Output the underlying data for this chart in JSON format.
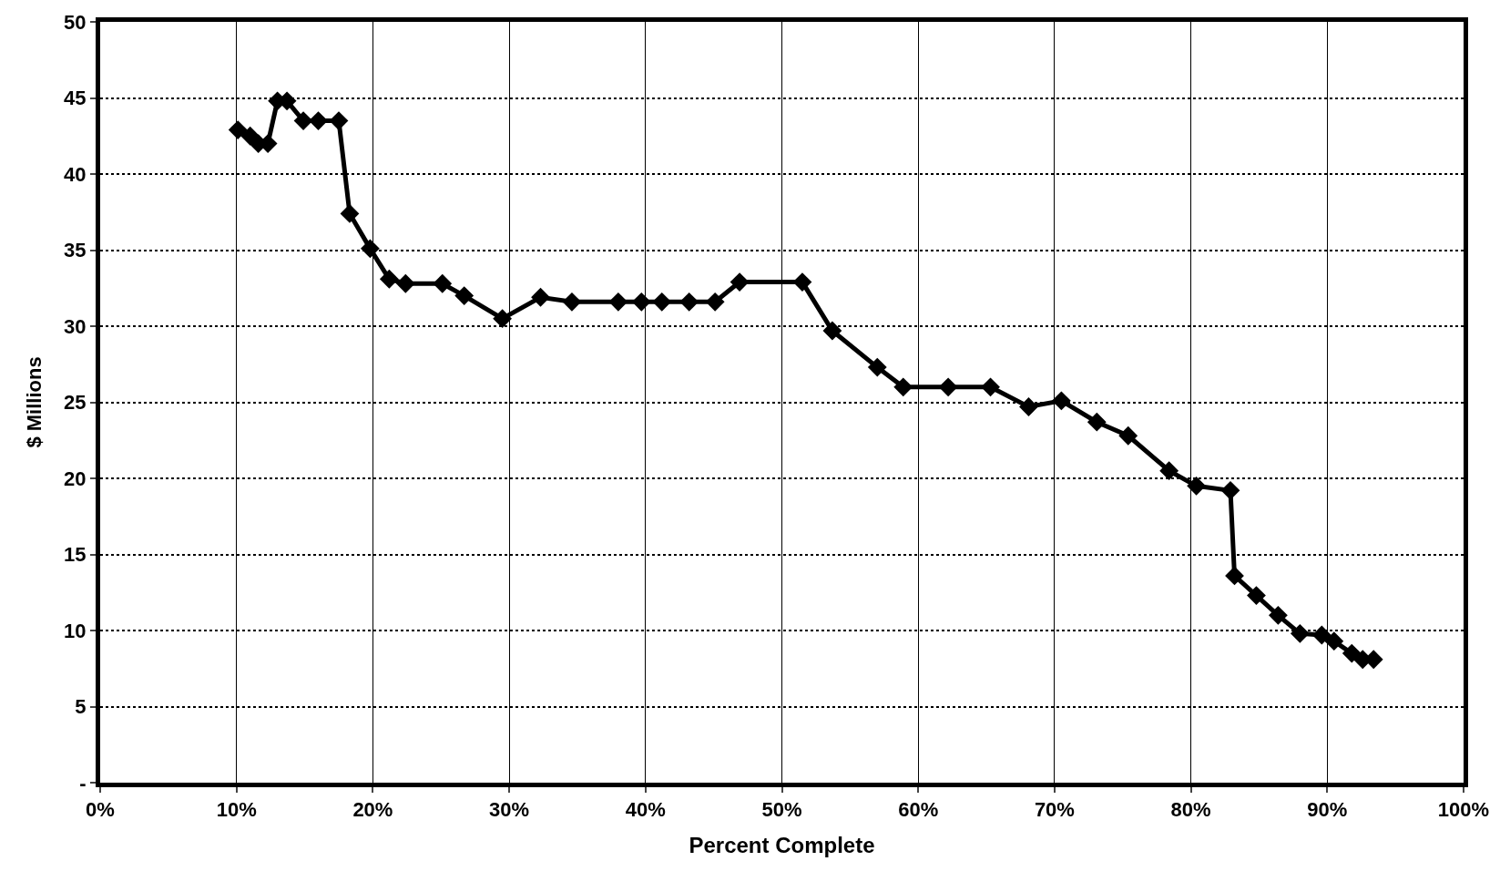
{
  "chart_data": {
    "type": "line",
    "xlabel": "Percent Complete",
    "ylabel": "$ Millions",
    "marker": "diamond",
    "line_style": "solid",
    "grid": true,
    "xlim": [
      0,
      100
    ],
    "xticks": [
      {
        "value": 0,
        "label": "0%"
      },
      {
        "value": 10,
        "label": "10%"
      },
      {
        "value": 20,
        "label": "20%"
      },
      {
        "value": 30,
        "label": "30%"
      },
      {
        "value": 40,
        "label": "40%"
      },
      {
        "value": 50,
        "label": "50%"
      },
      {
        "value": 60,
        "label": "60%"
      },
      {
        "value": 70,
        "label": "70%"
      },
      {
        "value": 80,
        "label": "80%"
      },
      {
        "value": 90,
        "label": "90%"
      },
      {
        "value": 100,
        "label": "100%"
      }
    ],
    "ylim": [
      0,
      50
    ],
    "yticks": [
      {
        "value": 0,
        "label": "-"
      },
      5,
      10,
      15,
      20,
      25,
      30,
      35,
      40,
      45,
      50
    ],
    "x": [
      10.1,
      11.0,
      11.6,
      12.3,
      13.0,
      13.7,
      14.9,
      16.0,
      17.5,
      18.3,
      19.8,
      21.2,
      22.4,
      25.1,
      26.7,
      29.5,
      32.3,
      34.6,
      38.0,
      39.7,
      41.2,
      43.2,
      45.1,
      46.9,
      51.5,
      53.7,
      57.0,
      58.9,
      62.2,
      65.3,
      68.1,
      70.5,
      73.1,
      75.4,
      78.4,
      80.4,
      82.9,
      83.2,
      84.8,
      86.4,
      88.0,
      89.6,
      90.5,
      91.8,
      92.6,
      93.4
    ],
    "series": [
      {
        "color": "#000000",
        "values": [
          42.9,
          42.5,
          42.0,
          42.0,
          44.8,
          44.8,
          43.5,
          43.5,
          43.5,
          37.4,
          35.1,
          33.1,
          32.8,
          32.8,
          32.0,
          30.5,
          31.9,
          31.6,
          31.6,
          31.6,
          31.6,
          31.6,
          31.6,
          32.9,
          32.9,
          29.7,
          27.3,
          26.0,
          26.0,
          26.0,
          24.7,
          25.1,
          23.7,
          22.8,
          20.5,
          19.5,
          19.2,
          13.6,
          12.3,
          11.0,
          9.8,
          9.7,
          9.3,
          8.5,
          8.1,
          8.1
        ]
      }
    ]
  }
}
